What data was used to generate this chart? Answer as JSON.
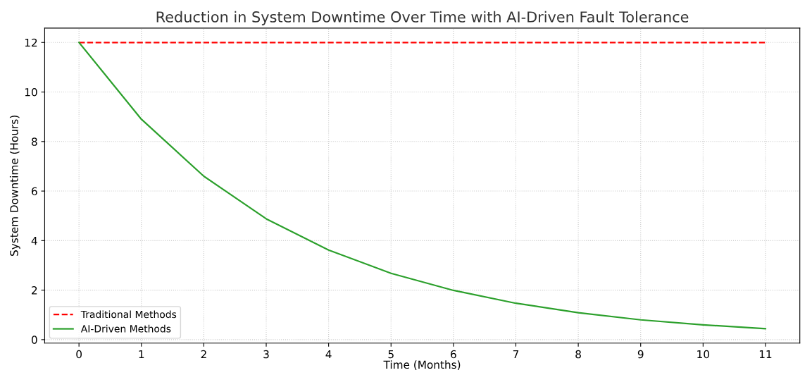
{
  "chart_data": {
    "type": "line",
    "title": "Reduction in System Downtime Over Time with AI-Driven Fault Tolerance",
    "xlabel": "Time (Months)",
    "ylabel": "System Downtime (Hours)",
    "x": [
      0,
      1,
      2,
      3,
      4,
      5,
      6,
      7,
      8,
      9,
      10,
      11
    ],
    "series": [
      {
        "name": "Traditional Methods",
        "color": "#ff0000",
        "line_style": "dashed",
        "values": [
          12,
          12,
          12,
          12,
          12,
          12,
          12,
          12,
          12,
          12,
          12,
          12
        ]
      },
      {
        "name": "AI-Driven Methods",
        "color": "#2ca02c",
        "line_style": "solid",
        "values": [
          12,
          8.9,
          6.6,
          4.88,
          3.62,
          2.68,
          1.99,
          1.47,
          1.09,
          0.8,
          0.6,
          0.44
        ]
      }
    ],
    "xlim": [
      -0.55,
      11.55
    ],
    "xticks": [
      0,
      1,
      2,
      3,
      4,
      5,
      6,
      7,
      8,
      9,
      10,
      11
    ],
    "ylim": [
      -0.14,
      12.58
    ],
    "yticks": [
      0,
      2,
      4,
      6,
      8,
      10,
      12
    ],
    "grid": true,
    "legend": "bottom left"
  }
}
